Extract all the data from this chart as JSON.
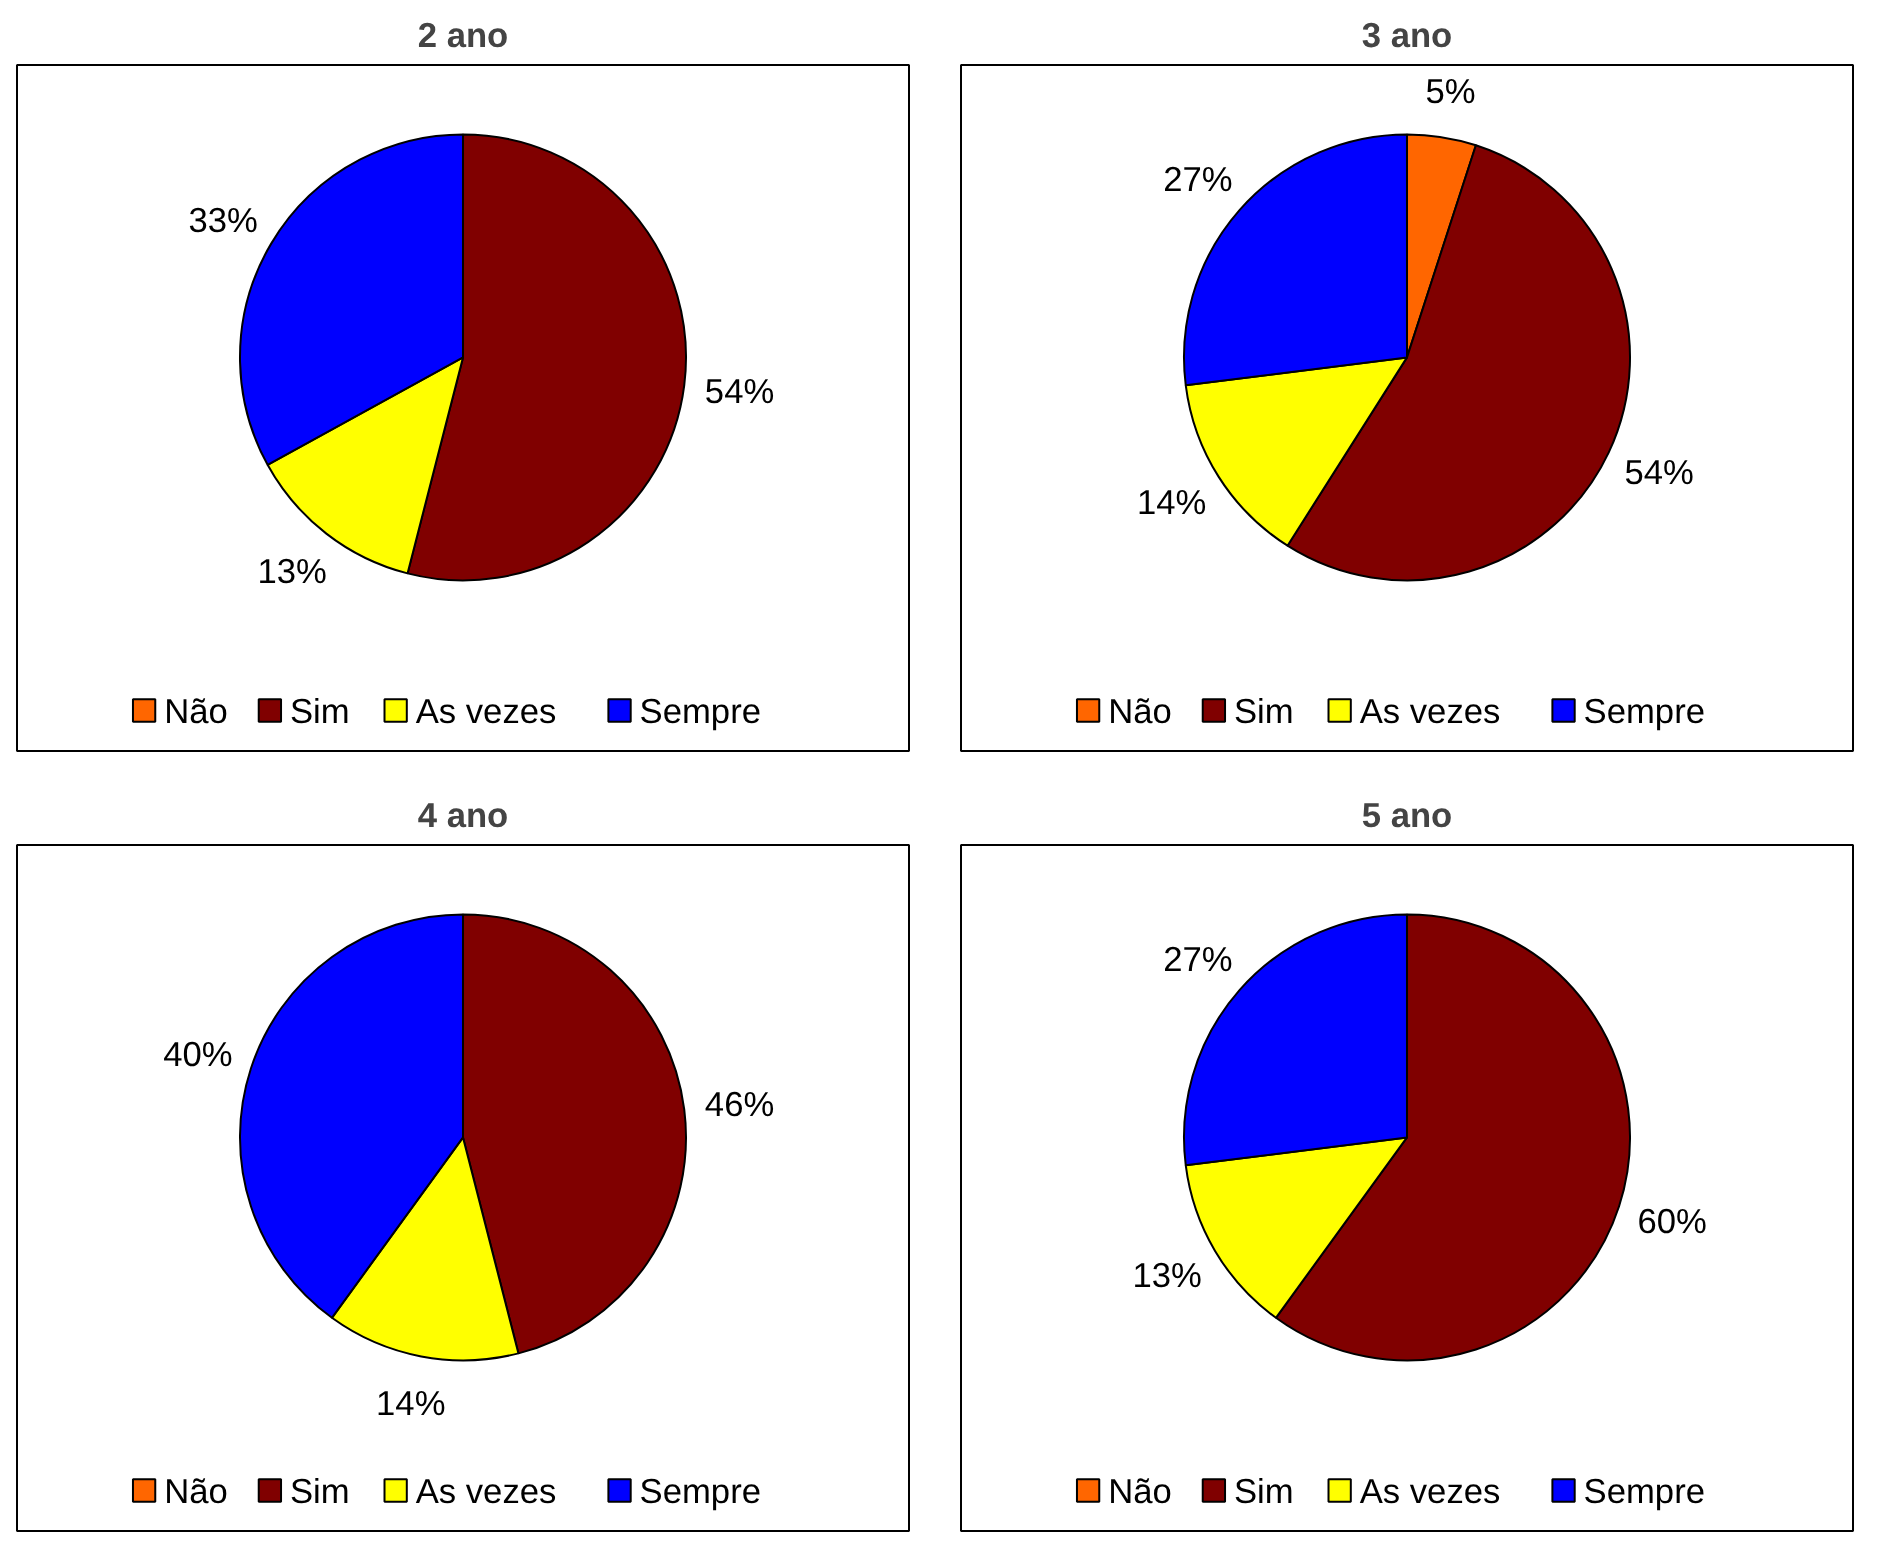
{
  "chart_data": [
    {
      "type": "pie",
      "title": "2 ano",
      "categories": [
        "Não",
        "Sim",
        "As vezes",
        "Sempre"
      ],
      "colors": [
        "#ff6600",
        "#800000",
        "#ffff00",
        "#0000ff"
      ],
      "values": [
        0,
        54,
        13,
        33
      ],
      "value_labels": [
        null,
        "54%",
        "13%",
        "33%"
      ],
      "legend": "bottom"
    },
    {
      "type": "pie",
      "title": "3 ano",
      "categories": [
        "Não",
        "Sim",
        "As vezes",
        "Sempre"
      ],
      "colors": [
        "#ff6600",
        "#800000",
        "#ffff00",
        "#0000ff"
      ],
      "values": [
        5,
        54,
        14,
        27
      ],
      "value_labels": [
        "5%",
        "54%",
        "14%",
        "27%"
      ],
      "legend": "bottom"
    },
    {
      "type": "pie",
      "title": "4 ano",
      "categories": [
        "Não",
        "Sim",
        "As vezes",
        "Sempre"
      ],
      "colors": [
        "#ff6600",
        "#800000",
        "#ffff00",
        "#0000ff"
      ],
      "values": [
        0,
        46,
        14,
        40
      ],
      "value_labels": [
        null,
        "46%",
        "14%",
        "40%"
      ],
      "legend": "bottom"
    },
    {
      "type": "pie",
      "title": "5 ano",
      "categories": [
        "Não",
        "Sim",
        "As vezes",
        "Sempre"
      ],
      "colors": [
        "#ff6600",
        "#800000",
        "#ffff00",
        "#0000ff"
      ],
      "values": [
        0,
        60,
        13,
        27
      ],
      "value_labels": [
        null,
        "60%",
        "13%",
        "27%"
      ],
      "legend": "bottom"
    }
  ]
}
